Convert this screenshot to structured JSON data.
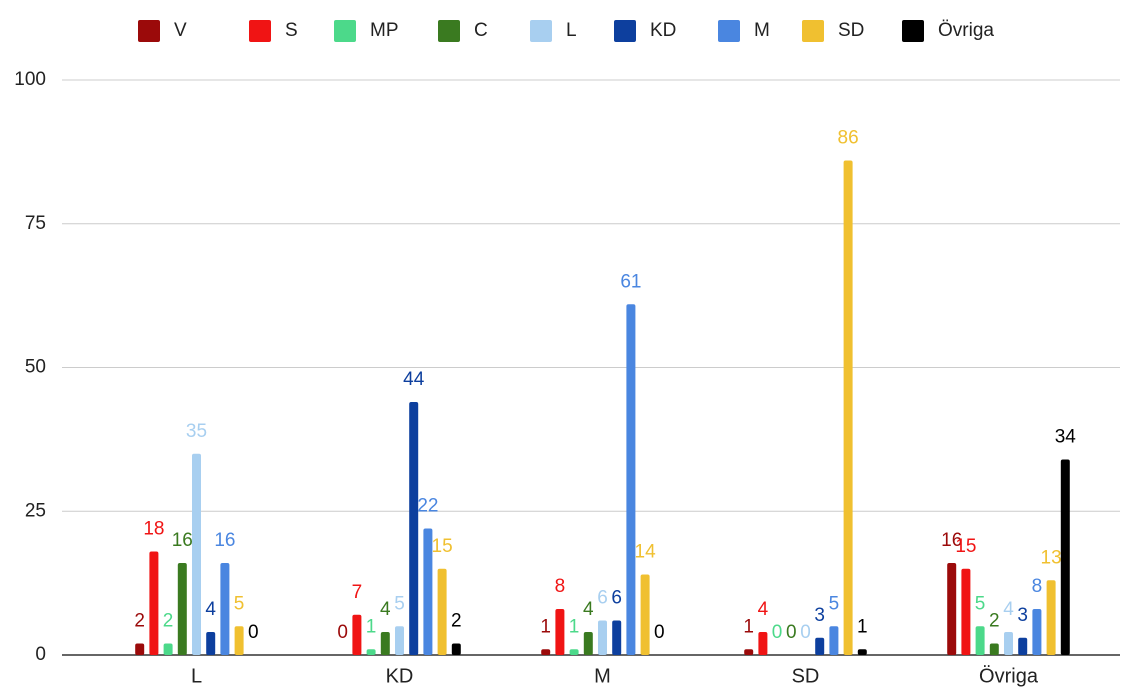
{
  "chart_data": {
    "type": "bar",
    "categories": [
      "L",
      "KD",
      "M",
      "SD",
      "Övriga"
    ],
    "series": [
      {
        "name": "V",
        "color": "#9b0a0a",
        "values": [
          2,
          0,
          1,
          1,
          16
        ]
      },
      {
        "name": "S",
        "color": "#f01414",
        "values": [
          18,
          7,
          8,
          4,
          15
        ]
      },
      {
        "name": "MP",
        "color": "#4cd98a",
        "values": [
          2,
          1,
          1,
          0,
          5
        ]
      },
      {
        "name": "C",
        "color": "#3a7a20",
        "values": [
          16,
          4,
          4,
          0,
          2
        ]
      },
      {
        "name": "L",
        "color": "#a8cff0",
        "values": [
          35,
          5,
          6,
          0,
          4
        ]
      },
      {
        "name": "KD",
        "color": "#0d3f9e",
        "values": [
          4,
          44,
          6,
          3,
          3
        ]
      },
      {
        "name": "M",
        "color": "#4a86e0",
        "values": [
          16,
          22,
          61,
          5,
          8
        ]
      },
      {
        "name": "SD",
        "color": "#f0c030",
        "values": [
          5,
          15,
          14,
          86,
          13
        ]
      },
      {
        "name": "Övriga",
        "color": "#000000",
        "values": [
          0,
          2,
          0,
          1,
          34
        ]
      }
    ],
    "ylim": [
      0,
      100
    ],
    "yticks": [
      0,
      25,
      50,
      75,
      100
    ],
    "grid": true,
    "legend": "top"
  }
}
